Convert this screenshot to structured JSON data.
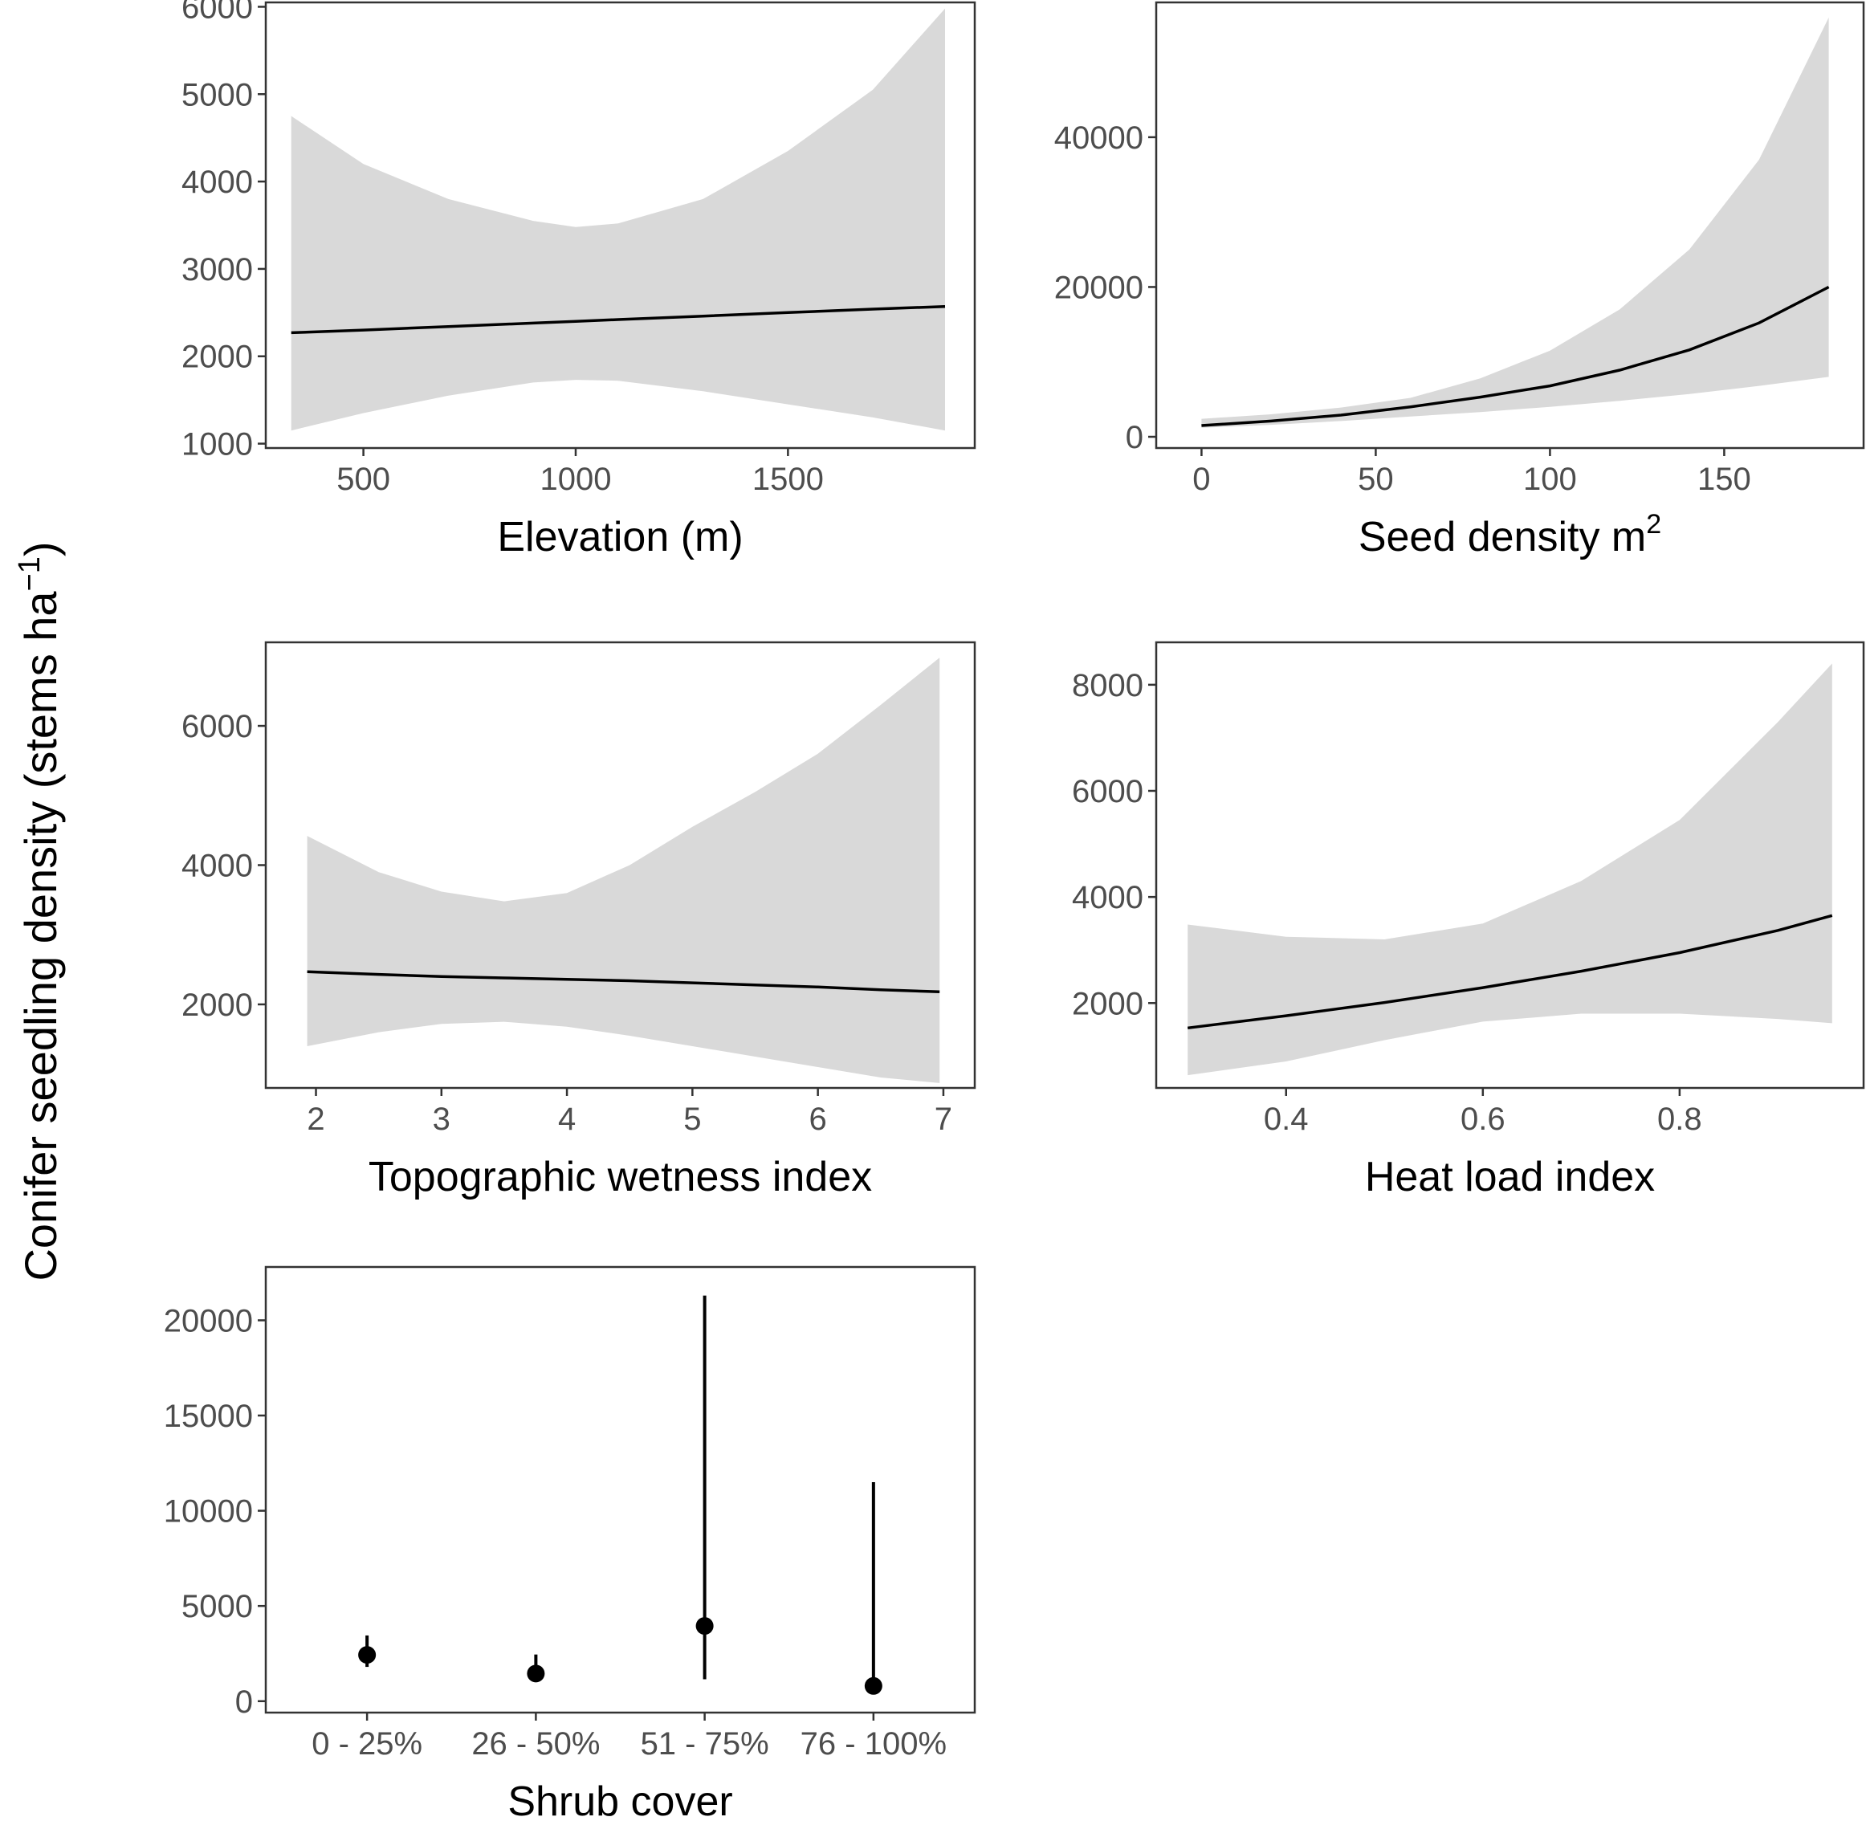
{
  "y_axis_title": {
    "main": "Conifer seedling density (stems ha",
    "sup": "−1",
    "close": ")"
  },
  "colors": {
    "ribbon": "#d9d9d9",
    "line": "#000000",
    "frame": "#333333",
    "tick_text": "#4d4d4d"
  },
  "chart_data": [
    {
      "type": "line",
      "id": "elevation",
      "xlabel": "Elevation (m)",
      "xlim": [
        270,
        1940
      ],
      "ylim": [
        950,
        6050
      ],
      "xticks": [
        500,
        1000,
        1500
      ],
      "yticks": [
        1000,
        2000,
        3000,
        4000,
        5000,
        6000
      ],
      "x": [
        330,
        500,
        700,
        900,
        1000,
        1100,
        1300,
        1500,
        1700,
        1870
      ],
      "fit": [
        2270,
        2300,
        2340,
        2380,
        2400,
        2420,
        2460,
        2500,
        2540,
        2570
      ],
      "lower": [
        1150,
        1350,
        1550,
        1700,
        1730,
        1720,
        1600,
        1450,
        1300,
        1150
      ],
      "upper": [
        4750,
        4200,
        3800,
        3550,
        3480,
        3520,
        3800,
        4350,
        5050,
        5980
      ]
    },
    {
      "type": "line",
      "id": "seed_density",
      "xlabel": "Seed density m",
      "xlabel_sup": "2",
      "xlim": [
        -13,
        190
      ],
      "ylim": [
        -1500,
        58000
      ],
      "xticks": [
        0,
        50,
        100,
        150
      ],
      "yticks": [
        0,
        20000,
        40000
      ],
      "x": [
        0,
        20,
        40,
        60,
        80,
        100,
        120,
        140,
        160,
        180
      ],
      "fit": [
        1500,
        2100,
        2900,
        4000,
        5300,
        6800,
        8900,
        11600,
        15200,
        20000
      ],
      "lower": [
        1200,
        1600,
        2100,
        2700,
        3300,
        4000,
        4800,
        5700,
        6800,
        8000
      ],
      "upper": [
        2400,
        3000,
        3900,
        5200,
        7800,
        11500,
        17000,
        25000,
        37000,
        56000
      ]
    },
    {
      "type": "line",
      "id": "twi",
      "xlabel": "Topographic wetness index",
      "xlim": [
        1.6,
        7.25
      ],
      "ylim": [
        800,
        7200
      ],
      "xticks": [
        2,
        3,
        4,
        5,
        6,
        7
      ],
      "yticks": [
        2000,
        4000,
        6000
      ],
      "x": [
        1.93,
        2.5,
        3.0,
        3.5,
        4.0,
        4.5,
        5.0,
        5.5,
        6.0,
        6.5,
        6.97
      ],
      "fit": [
        2470,
        2430,
        2400,
        2380,
        2360,
        2340,
        2310,
        2280,
        2250,
        2210,
        2180
      ],
      "lower": [
        1400,
        1600,
        1720,
        1750,
        1680,
        1550,
        1400,
        1250,
        1100,
        950,
        870
      ],
      "upper": [
        4420,
        3900,
        3620,
        3480,
        3600,
        4000,
        4550,
        5050,
        5600,
        6300,
        6980
      ]
    },
    {
      "type": "line",
      "id": "hli",
      "xlabel": "Heat load index",
      "xlim": [
        0.268,
        0.987
      ],
      "ylim": [
        400,
        8800
      ],
      "xticks": [
        0.4,
        0.6,
        0.8
      ],
      "yticks": [
        2000,
        4000,
        6000,
        8000
      ],
      "x": [
        0.3,
        0.4,
        0.5,
        0.6,
        0.7,
        0.8,
        0.9,
        0.955
      ],
      "fit": [
        1530,
        1760,
        2010,
        2290,
        2600,
        2950,
        3370,
        3650
      ],
      "lower": [
        640,
        900,
        1300,
        1650,
        1800,
        1800,
        1700,
        1620
      ],
      "upper": [
        3480,
        3250,
        3200,
        3500,
        4300,
        5450,
        7300,
        8400
      ]
    },
    {
      "type": "scatter",
      "id": "shrub_cover",
      "xlabel": "Shrub cover",
      "categories": [
        "0 - 25%",
        "26 - 50%",
        "51 - 75%",
        "76 - 100%"
      ],
      "values": [
        2430,
        1450,
        3950,
        800
      ],
      "lower": [
        1800,
        1100,
        1150,
        450
      ],
      "upper": [
        3450,
        2450,
        21300,
        11500
      ],
      "ylim": [
        -600,
        22800
      ],
      "yticks": [
        0,
        5000,
        10000,
        15000,
        20000
      ]
    }
  ]
}
